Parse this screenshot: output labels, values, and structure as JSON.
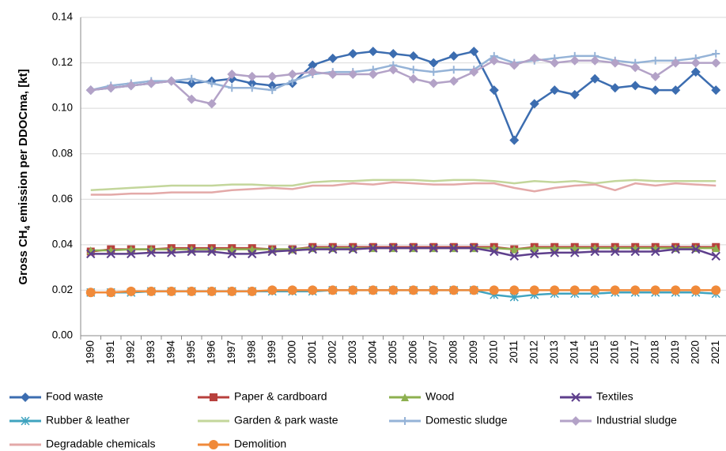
{
  "chart_data": {
    "type": "line",
    "ylabel": [
      "Gross CH",
      "4",
      " emission per DDOCma, [kt]"
    ],
    "categories": [
      "1990",
      "1991",
      "1992",
      "1993",
      "1994",
      "1995",
      "1996",
      "1997",
      "1998",
      "1999",
      "2000",
      "2001",
      "2002",
      "2003",
      "2004",
      "2005",
      "2006",
      "2007",
      "2008",
      "2009",
      "2010",
      "2011",
      "2012",
      "2013",
      "2014",
      "2015",
      "2016",
      "2017",
      "2018",
      "2019",
      "2020",
      "2021"
    ],
    "ylim": [
      0,
      0.14
    ],
    "yticks": [
      {
        "value": 0,
        "label": "0.00"
      },
      {
        "value": 0.02,
        "label": "0.02"
      },
      {
        "value": 0.04,
        "label": "0.04"
      },
      {
        "value": 0.06,
        "label": "0.06"
      },
      {
        "value": 0.08,
        "label": "0.08"
      },
      {
        "value": 0.1,
        "label": "0.10"
      },
      {
        "value": 0.12,
        "label": "0.12"
      },
      {
        "value": 0.14,
        "label": "0.14"
      }
    ],
    "grid": true,
    "series": [
      {
        "name": "Food waste",
        "color": "#3c6db0",
        "marker": "diamond",
        "values": [
          0.108,
          0.109,
          0.11,
          0.111,
          0.112,
          0.111,
          0.112,
          0.113,
          0.111,
          0.11,
          0.111,
          0.119,
          0.122,
          0.124,
          0.125,
          0.124,
          0.123,
          0.12,
          0.123,
          0.125,
          0.108,
          0.086,
          0.102,
          0.108,
          0.106,
          0.113,
          0.109,
          0.11,
          0.108,
          0.108,
          0.116,
          0.108
        ]
      },
      {
        "name": "Paper & cardboard",
        "color": "#b8403d",
        "marker": "square",
        "values": [
          0.037,
          0.038,
          0.038,
          0.038,
          0.0385,
          0.0385,
          0.0385,
          0.0385,
          0.0385,
          0.038,
          0.038,
          0.039,
          0.039,
          0.039,
          0.039,
          0.039,
          0.039,
          0.039,
          0.039,
          0.039,
          0.039,
          0.038,
          0.039,
          0.039,
          0.039,
          0.039,
          0.039,
          0.039,
          0.039,
          0.039,
          0.039,
          0.039
        ]
      },
      {
        "name": "Wood",
        "color": "#8db04f",
        "marker": "triangle",
        "values": [
          0.0375,
          0.0375,
          0.038,
          0.038,
          0.038,
          0.038,
          0.038,
          0.038,
          0.038,
          0.038,
          0.038,
          0.0385,
          0.0385,
          0.0385,
          0.0385,
          0.0385,
          0.0385,
          0.0385,
          0.0385,
          0.0385,
          0.0385,
          0.038,
          0.0385,
          0.0385,
          0.0385,
          0.0385,
          0.0385,
          0.0385,
          0.0385,
          0.0385,
          0.0385,
          0.0385
        ]
      },
      {
        "name": "Textiles",
        "color": "#5e3f8c",
        "marker": "x",
        "values": [
          0.036,
          0.036,
          0.036,
          0.0365,
          0.0365,
          0.037,
          0.037,
          0.036,
          0.036,
          0.037,
          0.0375,
          0.038,
          0.038,
          0.038,
          0.0385,
          0.0385,
          0.0385,
          0.0385,
          0.0385,
          0.0385,
          0.037,
          0.035,
          0.036,
          0.0365,
          0.0365,
          0.037,
          0.037,
          0.037,
          0.037,
          0.038,
          0.038,
          0.035
        ]
      },
      {
        "name": "Rubber & leather",
        "color": "#3fa3bf",
        "marker": "star",
        "values": [
          0.019,
          0.019,
          0.019,
          0.0195,
          0.0195,
          0.0195,
          0.0195,
          0.0195,
          0.0195,
          0.0195,
          0.0195,
          0.0195,
          0.02,
          0.02,
          0.02,
          0.02,
          0.02,
          0.02,
          0.02,
          0.02,
          0.018,
          0.017,
          0.018,
          0.0185,
          0.0185,
          0.0185,
          0.019,
          0.019,
          0.019,
          0.019,
          0.019,
          0.0185
        ]
      },
      {
        "name": "Garden & park waste",
        "color": "#c3d69b",
        "marker": "none",
        "values": [
          0.064,
          0.0645,
          0.065,
          0.0655,
          0.066,
          0.066,
          0.066,
          0.0665,
          0.0665,
          0.066,
          0.066,
          0.0675,
          0.068,
          0.068,
          0.0685,
          0.0685,
          0.0685,
          0.068,
          0.0685,
          0.0685,
          0.068,
          0.067,
          0.068,
          0.0675,
          0.068,
          0.067,
          0.068,
          0.0685,
          0.068,
          0.068,
          0.068,
          0.068
        ]
      },
      {
        "name": "Domestic sludge",
        "color": "#95b3d7",
        "marker": "plus",
        "values": [
          0.108,
          0.11,
          0.111,
          0.112,
          0.112,
          0.113,
          0.111,
          0.109,
          0.109,
          0.108,
          0.112,
          0.115,
          0.116,
          0.116,
          0.117,
          0.119,
          0.117,
          0.116,
          0.117,
          0.117,
          0.123,
          0.12,
          0.121,
          0.122,
          0.123,
          0.123,
          0.121,
          0.12,
          0.121,
          0.121,
          0.122,
          0.124
        ]
      },
      {
        "name": "Industrial sludge",
        "color": "#b3a2c7",
        "marker": "diamond",
        "values": [
          0.108,
          0.109,
          0.11,
          0.111,
          0.112,
          0.104,
          0.102,
          0.115,
          0.114,
          0.114,
          0.115,
          0.116,
          0.115,
          0.115,
          0.115,
          0.117,
          0.113,
          0.111,
          0.112,
          0.116,
          0.121,
          0.119,
          0.122,
          0.12,
          0.121,
          0.121,
          0.12,
          0.118,
          0.114,
          0.12,
          0.12,
          0.12
        ]
      },
      {
        "name": "Degradable chemicals",
        "color": "#e3a9a8",
        "marker": "none",
        "values": [
          0.062,
          0.062,
          0.0625,
          0.0625,
          0.063,
          0.063,
          0.063,
          0.064,
          0.0645,
          0.065,
          0.0645,
          0.066,
          0.066,
          0.067,
          0.0665,
          0.0675,
          0.067,
          0.0665,
          0.0665,
          0.067,
          0.067,
          0.065,
          0.0635,
          0.065,
          0.066,
          0.0665,
          0.064,
          0.067,
          0.066,
          0.067,
          0.0665,
          0.066
        ]
      },
      {
        "name": "Demolition",
        "color": "#f08a3a",
        "marker": "circle",
        "values": [
          0.019,
          0.019,
          0.0195,
          0.0195,
          0.0195,
          0.0195,
          0.0195,
          0.0195,
          0.0195,
          0.02,
          0.02,
          0.02,
          0.02,
          0.02,
          0.02,
          0.02,
          0.02,
          0.02,
          0.02,
          0.02,
          0.02,
          0.02,
          0.02,
          0.02,
          0.02,
          0.02,
          0.02,
          0.02,
          0.02,
          0.02,
          0.02,
          0.02
        ]
      }
    ]
  }
}
